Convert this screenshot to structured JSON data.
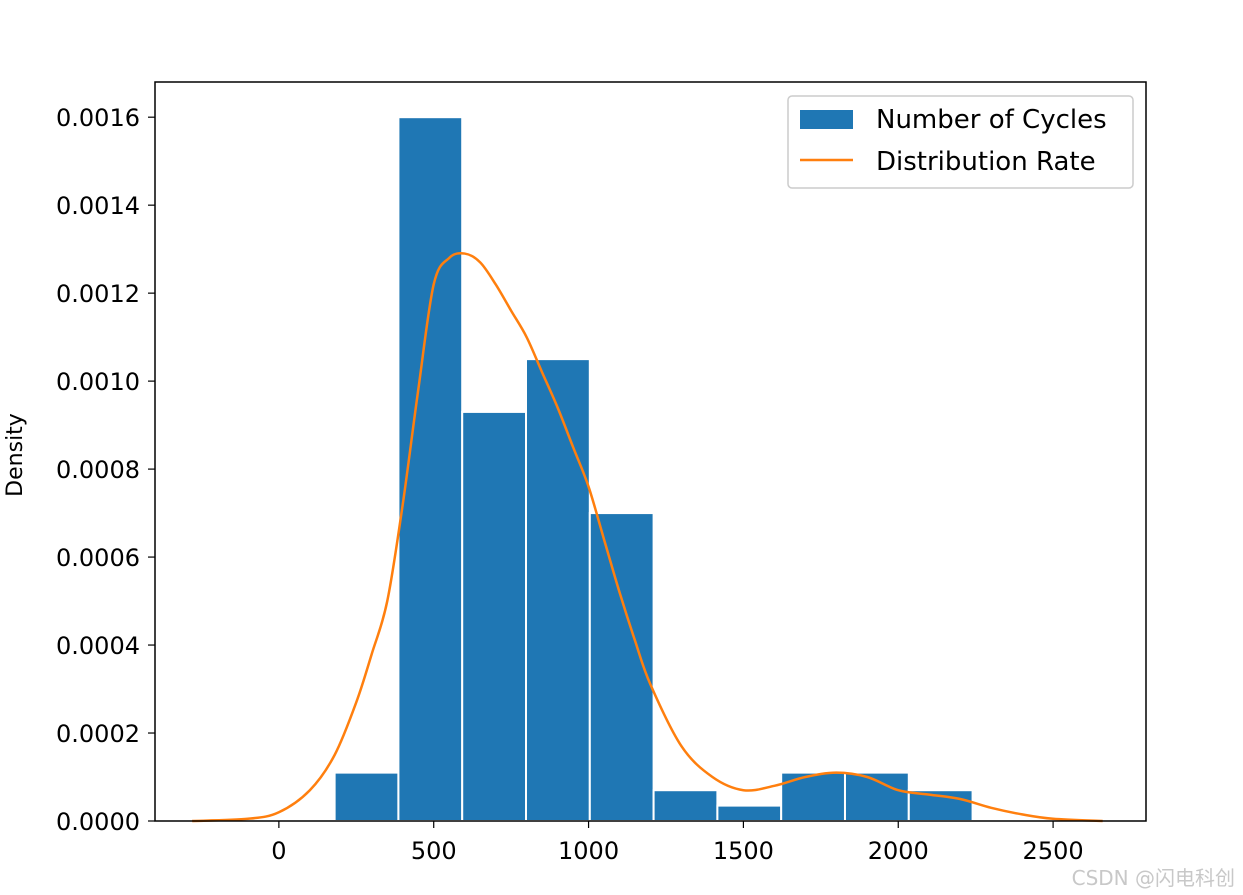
{
  "chart_data": {
    "type": "bar",
    "title": "",
    "xlabel": "",
    "ylabel": "Density",
    "xlim": [
      -400,
      2800
    ],
    "ylim": [
      0,
      0.00168
    ],
    "x_ticks": [
      0,
      500,
      1000,
      1500,
      2000,
      2500
    ],
    "x_tick_labels": [
      "0",
      "500",
      "1000",
      "1500",
      "2000",
      "2500"
    ],
    "y_ticks": [
      0,
      0.0002,
      0.0004,
      0.0006,
      0.0008,
      0.001,
      0.0012,
      0.0014,
      0.0016
    ],
    "y_tick_labels": [
      "0.0000",
      "0.0002",
      "0.0004",
      "0.0006",
      "0.0008",
      "0.0010",
      "0.0012",
      "0.0014",
      "0.0016"
    ],
    "grid": false,
    "legend_position": "top-right",
    "series": [
      {
        "name": "Number of Cycles",
        "kind": "histogram",
        "color": "#1f77b4",
        "bin_edges": [
          180,
          386,
          592,
          798,
          1004,
          1210,
          1416,
          1622,
          1828,
          2034,
          2240
        ],
        "values": [
          0.00011,
          0.0016,
          0.00093,
          0.00105,
          0.0007,
          7e-05,
          3.5e-05,
          0.00011,
          0.00011,
          7e-05
        ]
      },
      {
        "name": "Distribution Rate",
        "kind": "line",
        "color": "#ff7f0e",
        "x": [
          -280,
          -100,
          0,
          100,
          180,
          250,
          300,
          350,
          400,
          450,
          500,
          550,
          600,
          650,
          700,
          750,
          800,
          850,
          900,
          950,
          1000,
          1050,
          1100,
          1150,
          1200,
          1300,
          1400,
          1500,
          1600,
          1700,
          1800,
          1900,
          2000,
          2100,
          2200,
          2300,
          2400,
          2500,
          2660
        ],
        "y": [
          0.0,
          5e-06,
          2e-05,
          7e-05,
          0.00015,
          0.00027,
          0.00038,
          0.0005,
          0.00072,
          0.00098,
          0.00122,
          0.00128,
          0.00129,
          0.00127,
          0.00122,
          0.00116,
          0.0011,
          0.00102,
          0.00094,
          0.00085,
          0.00076,
          0.00064,
          0.00052,
          0.00041,
          0.00031,
          0.00017,
          0.0001,
          7e-05,
          8e-05,
          0.0001,
          0.00011,
          0.0001,
          7e-05,
          6e-05,
          5e-05,
          3e-05,
          1.5e-05,
          5e-06,
          0.0
        ]
      }
    ]
  },
  "watermark": "CSDN @闪电科创"
}
